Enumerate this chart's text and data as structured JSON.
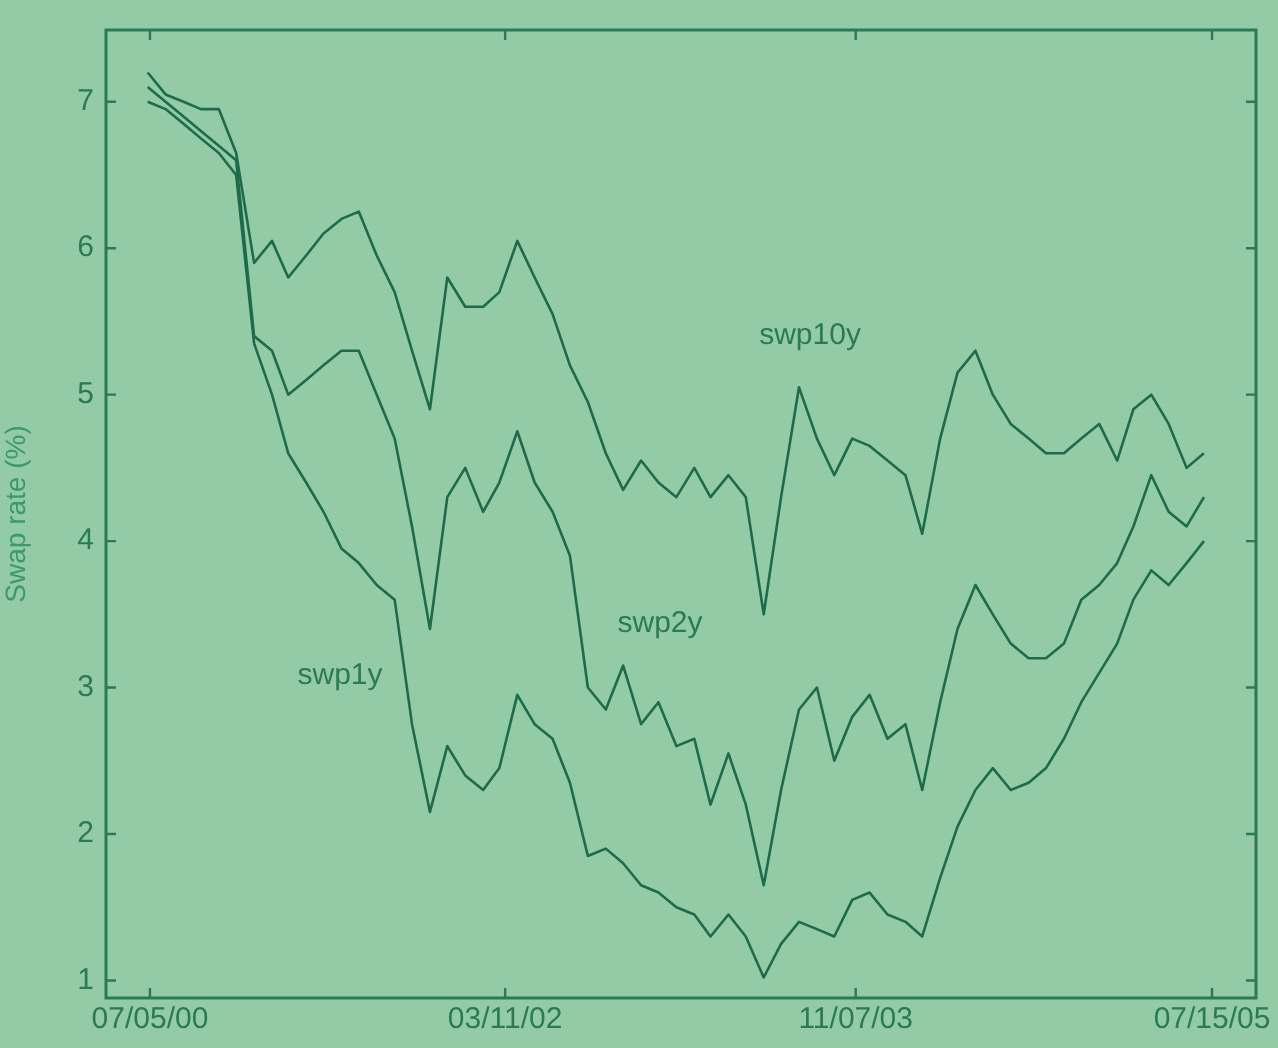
{
  "chart_data": {
    "type": "line",
    "ylabel": "Swap rate (%)",
    "x": [
      "2000-07",
      "2000-08",
      "2000-09",
      "2000-10",
      "2000-11",
      "2000-12",
      "2001-01",
      "2001-02",
      "2001-03",
      "2001-04",
      "2001-05",
      "2001-06",
      "2001-07",
      "2001-08",
      "2001-09",
      "2001-10",
      "2001-11",
      "2001-12",
      "2002-01",
      "2002-02",
      "2002-03",
      "2002-04",
      "2002-05",
      "2002-06",
      "2002-07",
      "2002-08",
      "2002-09",
      "2002-10",
      "2002-11",
      "2002-12",
      "2003-01",
      "2003-02",
      "2003-03",
      "2003-04",
      "2003-05",
      "2003-06",
      "2003-07",
      "2003-08",
      "2003-09",
      "2003-10",
      "2003-11",
      "2003-12",
      "2004-01",
      "2004-02",
      "2004-03",
      "2004-04",
      "2004-05",
      "2004-06",
      "2004-07",
      "2004-08",
      "2004-09",
      "2004-10",
      "2004-11",
      "2004-12",
      "2005-01",
      "2005-02",
      "2005-03",
      "2005-04",
      "2005-05",
      "2005-06",
      "2005-07"
    ],
    "series": [
      {
        "name": "swp10y",
        "color": "#1e6b4c",
        "values": [
          7.2,
          7.05,
          7.0,
          6.95,
          6.95,
          6.65,
          5.9,
          6.05,
          5.8,
          5.95,
          6.1,
          6.2,
          6.25,
          5.95,
          5.7,
          5.3,
          4.9,
          5.8,
          5.6,
          5.6,
          5.7,
          6.05,
          5.8,
          5.55,
          5.2,
          4.95,
          4.6,
          4.35,
          4.55,
          4.4,
          4.3,
          4.5,
          4.3,
          4.45,
          4.3,
          3.5,
          4.3,
          5.05,
          4.7,
          4.45,
          4.7,
          4.65,
          4.55,
          4.45,
          4.05,
          4.7,
          5.15,
          5.3,
          5.0,
          4.8,
          4.7,
          4.6,
          4.6,
          4.7,
          4.8,
          4.55,
          4.9,
          5.0,
          4.8,
          4.5,
          4.6
        ]
      },
      {
        "name": "swp2y",
        "color": "#1e6b4c",
        "values": [
          7.1,
          7.0,
          6.9,
          6.8,
          6.7,
          6.6,
          5.4,
          5.3,
          5.0,
          5.1,
          5.2,
          5.3,
          5.3,
          5.0,
          4.7,
          4.1,
          3.4,
          4.3,
          4.5,
          4.2,
          4.4,
          4.75,
          4.4,
          4.2,
          3.9,
          3.0,
          2.85,
          3.15,
          2.75,
          2.9,
          2.6,
          2.65,
          2.2,
          2.55,
          2.2,
          1.65,
          2.3,
          2.85,
          3.0,
          2.5,
          2.8,
          2.95,
          2.65,
          2.75,
          2.3,
          2.9,
          3.4,
          3.7,
          3.5,
          3.3,
          3.2,
          3.2,
          3.3,
          3.6,
          3.7,
          3.85,
          4.1,
          4.45,
          4.2,
          4.1,
          4.3
        ]
      },
      {
        "name": "swp1y",
        "color": "#1e6b4c",
        "values": [
          7.0,
          6.95,
          6.85,
          6.75,
          6.65,
          6.5,
          5.35,
          5.0,
          4.6,
          4.4,
          4.2,
          3.95,
          3.85,
          3.7,
          3.6,
          2.75,
          2.15,
          2.6,
          2.4,
          2.3,
          2.45,
          2.95,
          2.75,
          2.65,
          2.35,
          1.85,
          1.9,
          1.8,
          1.65,
          1.6,
          1.5,
          1.45,
          1.3,
          1.45,
          1.3,
          1.02,
          1.25,
          1.4,
          1.35,
          1.3,
          1.55,
          1.6,
          1.45,
          1.4,
          1.3,
          1.7,
          2.05,
          2.3,
          2.45,
          2.3,
          2.35,
          2.45,
          2.65,
          2.9,
          3.1,
          3.3,
          3.6,
          3.8,
          3.7,
          3.85,
          4.0
        ]
      }
    ],
    "xlim": [
      "2000-04-20",
      "2005-09-29"
    ],
    "xticks": [
      {
        "value": "2000-07-05",
        "label": "07/05/00"
      },
      {
        "value": "2002-03-11",
        "label": "03/11/02"
      },
      {
        "value": "2003-11-07",
        "label": "11/07/03"
      },
      {
        "value": "2005-07-15",
        "label": "07/15/05"
      }
    ],
    "ylim": [
      0.88,
      7.49
    ],
    "yticks": [
      1,
      2,
      3,
      4,
      5,
      6,
      7
    ],
    "grid": false,
    "legend": false,
    "marker": "none",
    "line_style": "solid"
  }
}
